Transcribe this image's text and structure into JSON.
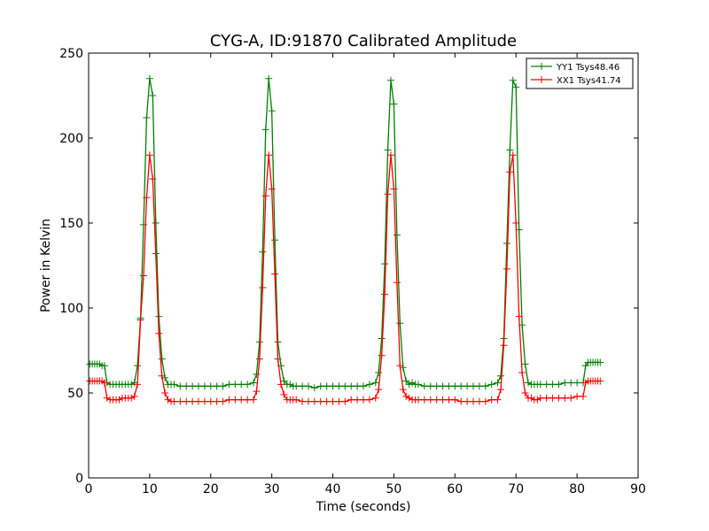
{
  "chart_data": {
    "type": "line",
    "title": "CYG-A, ID:91870 Calibrated Amplitude",
    "xlabel": "Time (seconds)",
    "ylabel": "Power in Kelvin",
    "xlim": [
      0,
      90
    ],
    "ylim": [
      0,
      250
    ],
    "xticks": [
      "0",
      "10",
      "20",
      "30",
      "40",
      "50",
      "60",
      "70",
      "80",
      "90"
    ],
    "yticks": [
      "0",
      "50",
      "100",
      "150",
      "200",
      "250"
    ],
    "grid": false,
    "legend_position": "top-right",
    "marker": "plus",
    "series": [
      {
        "name": "YY1 Tsys48.46",
        "color": "#008000",
        "x": [
          0.2,
          0.6,
          1.0,
          1.4,
          1.8,
          2.2,
          2.6,
          3.0,
          3.5,
          4.0,
          4.5,
          5.0,
          5.5,
          6.0,
          6.5,
          7.0,
          7.5,
          8.0,
          8.5,
          9.0,
          9.5,
          10.0,
          10.5,
          11.0,
          11.5,
          12.0,
          12.5,
          13.0,
          13.5,
          14.0,
          15.0,
          16.0,
          17.0,
          18.0,
          19.0,
          20.0,
          21.0,
          22.0,
          23.0,
          24.0,
          25.0,
          26.0,
          27.0,
          27.5,
          28.0,
          28.5,
          29.0,
          29.5,
          30.0,
          30.5,
          31.0,
          31.5,
          32.0,
          32.5,
          33.0,
          33.5,
          34.0,
          35.0,
          36.0,
          37.0,
          38.0,
          39.0,
          40.0,
          41.0,
          42.0,
          43.0,
          44.0,
          45.0,
          46.0,
          47.0,
          47.5,
          48.0,
          48.5,
          49.0,
          49.5,
          50.0,
          50.5,
          51.0,
          51.5,
          52.0,
          52.5,
          53.0,
          53.5,
          54.0,
          55.0,
          56.0,
          57.0,
          58.0,
          59.0,
          60.0,
          61.0,
          62.0,
          63.0,
          64.0,
          65.0,
          66.0,
          67.0,
          67.5,
          68.0,
          68.5,
          69.0,
          69.5,
          70.0,
          70.5,
          71.0,
          71.5,
          72.0,
          72.5,
          73.0,
          73.5,
          74.0,
          75.0,
          76.0,
          77.0,
          78.0,
          79.0,
          80.0,
          81.0,
          81.4,
          81.8,
          82.2,
          82.6,
          83.0,
          83.4,
          83.8
        ],
        "y": [
          67,
          67,
          67,
          67,
          67,
          66,
          66,
          56,
          55,
          55,
          55,
          55,
          55,
          55,
          55,
          55,
          56,
          66,
          94,
          149,
          212,
          235,
          225,
          150,
          95,
          70,
          59,
          55,
          55,
          55,
          54,
          54,
          54,
          54,
          54,
          54,
          54,
          54,
          55,
          55,
          55,
          55,
          56,
          61,
          80,
          133,
          205,
          235,
          216,
          140,
          80,
          66,
          57,
          55,
          55,
          54,
          54,
          54,
          54,
          53,
          54,
          54,
          54,
          54,
          54,
          54,
          54,
          54,
          55,
          56,
          62,
          82,
          126,
          193,
          234,
          220,
          143,
          91,
          65,
          57,
          55,
          56,
          55,
          55,
          54,
          54,
          54,
          54,
          54,
          54,
          54,
          54,
          54,
          54,
          54,
          55,
          56,
          60,
          82,
          138,
          193,
          234,
          230,
          146,
          90,
          67,
          56,
          55,
          55,
          55,
          55,
          55,
          55,
          55,
          56,
          56,
          56,
          56,
          66,
          68,
          68,
          68,
          68,
          68,
          68
        ]
      },
      {
        "name": "XX1 Tsys41.74",
        "color": "#ff0000",
        "x": [
          0.2,
          0.6,
          1.0,
          1.4,
          1.8,
          2.2,
          2.6,
          3.0,
          3.5,
          4.0,
          4.5,
          5.0,
          5.5,
          6.0,
          6.5,
          7.0,
          7.5,
          8.0,
          8.5,
          9.0,
          9.5,
          10.0,
          10.5,
          11.0,
          11.5,
          12.0,
          12.5,
          13.0,
          13.5,
          14.0,
          15.0,
          16.0,
          17.0,
          18.0,
          19.0,
          20.0,
          21.0,
          22.0,
          23.0,
          24.0,
          25.0,
          26.0,
          27.0,
          27.5,
          28.0,
          28.5,
          29.0,
          29.5,
          30.0,
          30.5,
          31.0,
          31.5,
          32.0,
          32.5,
          33.0,
          33.5,
          34.0,
          35.0,
          36.0,
          37.0,
          38.0,
          39.0,
          40.0,
          41.0,
          42.0,
          43.0,
          44.0,
          45.0,
          46.0,
          47.0,
          47.5,
          48.0,
          48.5,
          49.0,
          49.5,
          50.0,
          50.5,
          51.0,
          51.5,
          52.0,
          52.5,
          53.0,
          53.5,
          54.0,
          55.0,
          56.0,
          57.0,
          58.0,
          59.0,
          60.0,
          61.0,
          62.0,
          63.0,
          64.0,
          65.0,
          66.0,
          67.0,
          67.5,
          68.0,
          68.5,
          69.0,
          69.5,
          70.0,
          70.5,
          71.0,
          71.5,
          72.0,
          72.5,
          73.0,
          73.5,
          74.0,
          75.0,
          76.0,
          77.0,
          78.0,
          79.0,
          80.0,
          81.0,
          81.4,
          81.8,
          82.2,
          82.6,
          83.0,
          83.4,
          83.8
        ],
        "y": [
          57,
          57,
          57,
          57,
          57,
          57,
          56,
          47,
          46,
          46,
          46,
          46,
          47,
          47,
          47,
          47,
          48,
          55,
          93,
          119,
          165,
          190,
          176,
          132,
          85,
          60,
          50,
          46,
          45,
          45,
          45,
          45,
          45,
          45,
          45,
          45,
          45,
          45,
          46,
          46,
          46,
          46,
          46,
          51,
          70,
          112,
          166,
          190,
          170,
          120,
          70,
          55,
          49,
          46,
          46,
          46,
          46,
          45,
          45,
          45,
          45,
          45,
          45,
          45,
          45,
          46,
          46,
          46,
          46,
          47,
          52,
          72,
          108,
          167,
          190,
          170,
          115,
          66,
          52,
          48,
          47,
          46,
          46,
          46,
          46,
          46,
          46,
          46,
          46,
          46,
          45,
          45,
          45,
          45,
          45,
          46,
          46,
          52,
          78,
          123,
          180,
          190,
          150,
          95,
          62,
          50,
          47,
          47,
          46,
          46,
          47,
          47,
          47,
          47,
          47,
          47,
          48,
          48,
          56,
          57,
          57,
          57,
          57,
          57,
          57
        ]
      }
    ]
  }
}
